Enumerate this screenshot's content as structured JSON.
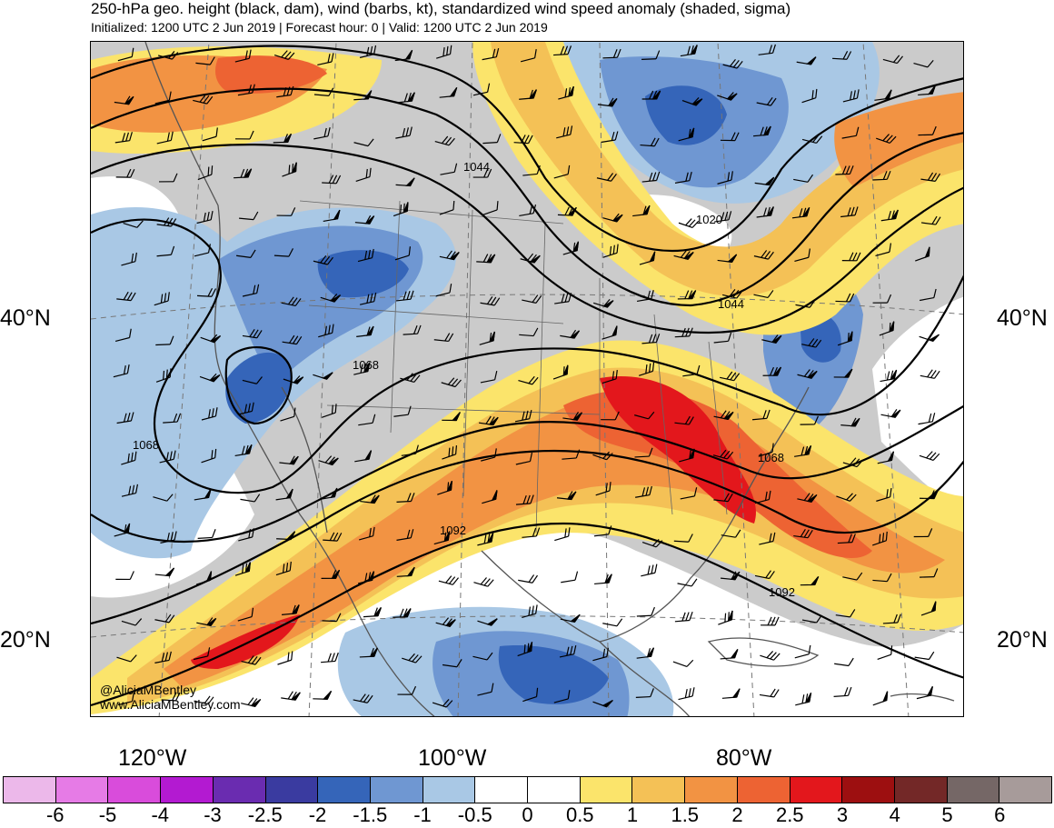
{
  "title": "250-hPa geo. height (black, dam), wind (barbs, kt), standardized wind speed anomaly (shaded, sigma)",
  "subtitle": "Initialized: 1200 UTC 2 Jun 2019 | Forecast hour: 0 | Valid: 1200 UTC 2 Jun 2019",
  "lat_labels": {
    "n40_left": "40°N",
    "n40_right": "40°N",
    "n20_left": "20°N",
    "n20_right": "20°N"
  },
  "lon_labels": {
    "w120": "120°W",
    "w100": "100°W",
    "w80": "80°W"
  },
  "contour_labels": [
    "1044",
    "1020",
    "1044",
    "1068",
    "1068",
    "1068",
    "1092",
    "1092"
  ],
  "credit": {
    "handle": "@AliciaMBentley",
    "site": "www.AliciaMBentley.com"
  },
  "colorbar": {
    "colors": [
      "#ecb8ea",
      "#e67be6",
      "#d94cdb",
      "#b31ad1",
      "#6a2cb0",
      "#3a3ba0",
      "#3565b9",
      "#6f97d2",
      "#a9c8e5",
      "#ffffff",
      "#ffffff",
      "#fbe46b",
      "#f4c156",
      "#f29343",
      "#ed6333",
      "#e3171c",
      "#9d0f10",
      "#732827",
      "#756766",
      "#a79b9a"
    ],
    "labels": [
      "-6",
      "-5",
      "-4",
      "-3",
      "-2.5",
      "-2",
      "-1.5",
      "-1",
      "-0.5",
      "0",
      "0.5",
      "1",
      "1.5",
      "2",
      "2.5",
      "3",
      "4",
      "5",
      "6"
    ]
  },
  "palette": {
    "gray": "#cbcbcb",
    "white": "#ffffff",
    "blue_light": "#a9c8e5",
    "blue_mid": "#6f97d2",
    "blue_dark": "#3565b9",
    "blue_darker": "#3a3ba0",
    "yellow": "#fbe46b",
    "gold": "#f4c156",
    "orange": "#f29343",
    "orange_red": "#ed6333",
    "red": "#e3171c"
  }
}
